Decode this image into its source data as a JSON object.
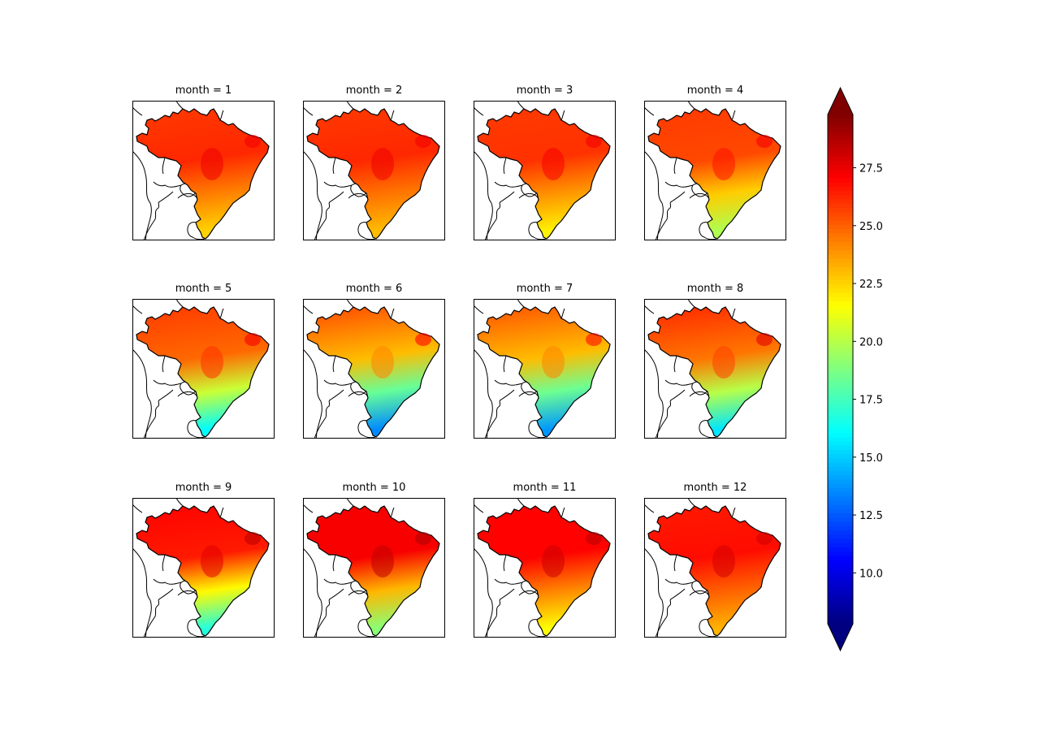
{
  "chart_data": {
    "type": "heatmap",
    "colormap": "jet",
    "colorbar": {
      "extend": "both",
      "vmin": 7.8,
      "vmax": 29.8,
      "ticks": [
        10.0,
        12.5,
        15.0,
        17.5,
        20.0,
        22.5,
        25.0,
        27.5
      ],
      "tick_labels": [
        "10.0",
        "12.5",
        "15.0",
        "17.5",
        "20.0",
        "22.5",
        "25.0",
        "27.5"
      ]
    },
    "panels": [
      {
        "title": "month = 1",
        "north": 25.8,
        "center": 26.2,
        "south": 22.5
      },
      {
        "title": "month = 2",
        "north": 25.8,
        "center": 26.2,
        "south": 23.0
      },
      {
        "title": "month = 3",
        "north": 25.8,
        "center": 26.0,
        "south": 21.8
      },
      {
        "title": "month = 4",
        "north": 25.8,
        "center": 25.5,
        "south": 19.8
      },
      {
        "title": "month = 5",
        "north": 25.8,
        "center": 24.8,
        "south": 16.0
      },
      {
        "title": "month = 6",
        "north": 25.5,
        "center": 23.0,
        "south": 13.5
      },
      {
        "title": "month = 7",
        "north": 25.3,
        "center": 23.0,
        "south": 13.8
      },
      {
        "title": "month = 8",
        "north": 26.2,
        "center": 24.5,
        "south": 15.5
      },
      {
        "title": "month = 9",
        "north": 27.0,
        "center": 26.5,
        "south": 16.8
      },
      {
        "title": "month = 10",
        "north": 27.2,
        "center": 27.2,
        "south": 19.0
      },
      {
        "title": "month = 11",
        "north": 27.0,
        "center": 27.0,
        "south": 21.5
      },
      {
        "title": "month = 12",
        "north": 26.5,
        "center": 26.8,
        "south": 23.2
      }
    ]
  }
}
